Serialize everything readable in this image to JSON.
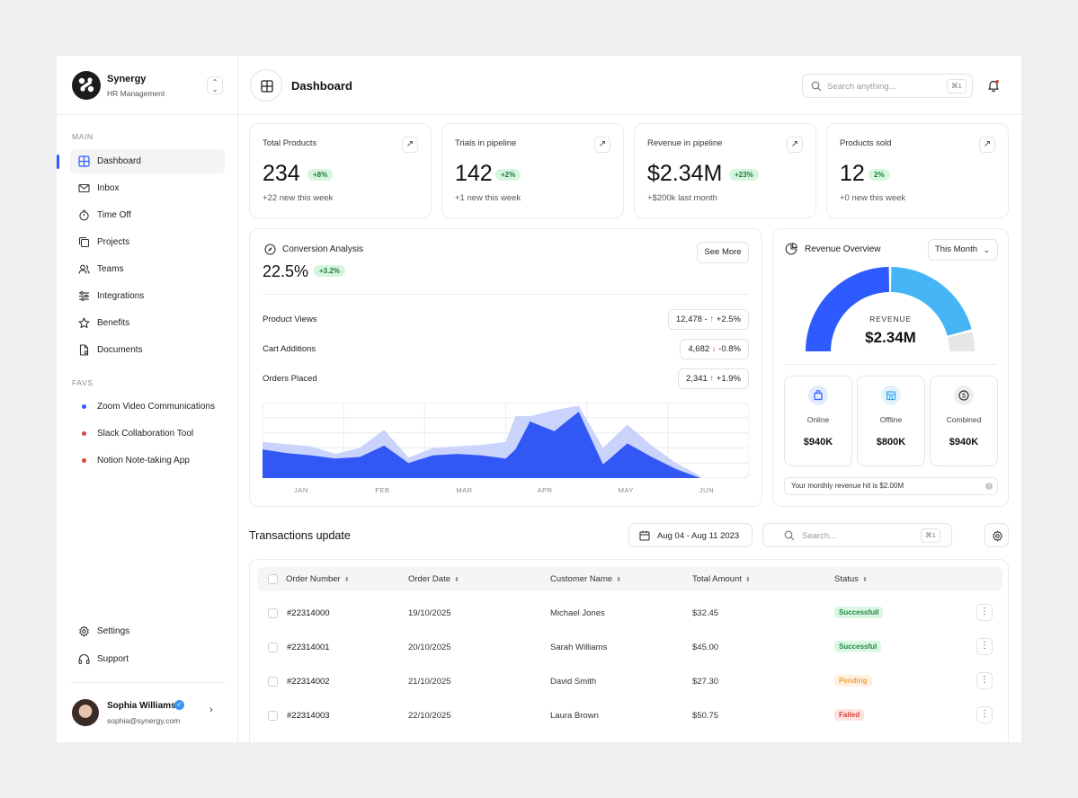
{
  "brand": {
    "name": "Synergy",
    "subtitle": "HR Management"
  },
  "sidebar": {
    "main_label": "MAIN",
    "items": [
      {
        "label": "Dashboard",
        "icon": "grid-icon",
        "active": true
      },
      {
        "label": "Inbox",
        "icon": "mail-icon"
      },
      {
        "label": "Time Off",
        "icon": "timer-icon"
      },
      {
        "label": "Projects",
        "icon": "copy-icon"
      },
      {
        "label": "Teams",
        "icon": "users-icon"
      },
      {
        "label": "Integrations",
        "icon": "sliders-icon"
      },
      {
        "label": "Benefits",
        "icon": "star-icon"
      },
      {
        "label": "Documents",
        "icon": "document-icon"
      }
    ],
    "favs_label": "FAVS",
    "favs": [
      {
        "label": "Zoom Video Communications",
        "color": "#2e5bff"
      },
      {
        "label": "Slack Collaboration Tool",
        "color": "#e0453a"
      },
      {
        "label": "Notion Note-taking App",
        "color": "#e0453a"
      }
    ],
    "bottom": [
      {
        "label": "Settings",
        "icon": "gear-icon"
      },
      {
        "label": "Support",
        "icon": "headphones-icon"
      }
    ],
    "user": {
      "name": "Sophia Williams",
      "email": "sophia@synergy.com"
    }
  },
  "header": {
    "title": "Dashboard",
    "search_placeholder": "Search anything...",
    "search_shortcut": "⌘1"
  },
  "stats": [
    {
      "title": "Total Products",
      "value": "234",
      "change": "+8%",
      "sub": "+22 new this week"
    },
    {
      "title": "Trials in pipeline",
      "value": "142",
      "change": "+2%",
      "sub": "+1 new this week"
    },
    {
      "title": "Revenue in pipeline",
      "value": "$2.34M",
      "change": "+23%",
      "sub": "+$200k last month"
    },
    {
      "title": "Products sold",
      "value": "12",
      "change": "2%",
      "sub": "+0 new this week"
    }
  ],
  "conversion": {
    "title": "Conversion Analysis",
    "value": "22.5%",
    "change": "+3.2%",
    "see_more": "See More",
    "metrics": [
      {
        "label": "Product Views",
        "value": "12,478 -",
        "arrow": "↑",
        "change": "+2.5%",
        "direction": "up"
      },
      {
        "label": "Cart Additions",
        "value": "4,682",
        "arrow": "↓",
        "change": "-0.8%",
        "direction": "down"
      },
      {
        "label": "Orders Placed",
        "value": "2,341",
        "arrow": "↑",
        "change": "+1.9%",
        "direction": "up"
      }
    ]
  },
  "chart_data": {
    "type": "area",
    "categories": [
      "JAN",
      "FEB",
      "MAR",
      "APR",
      "MAY",
      "JUN"
    ],
    "x": [
      0,
      0.3,
      0.6,
      0.9,
      1.2,
      1.5,
      1.8,
      2.1,
      2.4,
      2.7,
      3.0,
      3.12,
      3.3,
      3.6,
      3.9,
      4.2,
      4.5,
      4.8,
      5.1,
      5.4
    ],
    "series": [
      {
        "values": [
          0.48,
          0.45,
          0.42,
          0.32,
          0.4,
          0.64,
          0.27,
          0.4,
          0.42,
          0.44,
          0.48,
          0.82,
          0.82,
          0.9,
          0.96,
          0.4,
          0.71,
          0.43,
          0.2,
          0.03
        ],
        "color": "#c9d3fb"
      },
      {
        "values": [
          0.38,
          0.33,
          0.3,
          0.26,
          0.28,
          0.43,
          0.2,
          0.3,
          0.32,
          0.3,
          0.26,
          0.38,
          0.75,
          0.62,
          0.88,
          0.18,
          0.46,
          0.28,
          0.12,
          0.0
        ],
        "color": "#3157f5"
      }
    ],
    "ylim": [
      0,
      1
    ],
    "grid": true
  },
  "revenue": {
    "title": "Revenue Overview",
    "period": "This Month",
    "label": "REVENUE",
    "value": "$2.34M",
    "gauge": {
      "online": 0.5,
      "offline": 0.42,
      "remaining": 0.08,
      "colors": [
        "#2e5bff",
        "#45b5f5",
        "#e6e6e6"
      ]
    },
    "channels": [
      {
        "label": "Online",
        "value": "$940K",
        "icon": "bag-icon"
      },
      {
        "label": "Offline",
        "value": "$800K",
        "icon": "store-icon"
      },
      {
        "label": "Combined",
        "value": "$940K",
        "icon": "dollar-icon"
      }
    ],
    "note": "Your monthly revenue hit is $2.00M"
  },
  "transactions": {
    "title": "Transactions update",
    "date_range": "Aug 04 - Aug 11 2023",
    "search_placeholder": "Search...",
    "search_shortcut": "⌘1",
    "columns": [
      "Order Number",
      "Order Date",
      "Customer Name",
      "Total Amount",
      "Status"
    ],
    "rows": [
      {
        "order": "#22314000",
        "date": "19/10/2025",
        "customer": "Michael Jones",
        "amount": "$32.45",
        "status": "Successfull",
        "kind": "success"
      },
      {
        "order": "#22314001",
        "date": "20/10/2025",
        "customer": "Sarah Williams",
        "amount": "$45.00",
        "status": "Successful",
        "kind": "success"
      },
      {
        "order": "#22314002",
        "date": "21/10/2025",
        "customer": "David Smith",
        "amount": "$27.30",
        "status": "Pending",
        "kind": "pending"
      },
      {
        "order": "#22314003",
        "date": "22/10/2025",
        "customer": "Laura Brown",
        "amount": "$50.75",
        "status": "Failed",
        "kind": "failed"
      }
    ]
  }
}
